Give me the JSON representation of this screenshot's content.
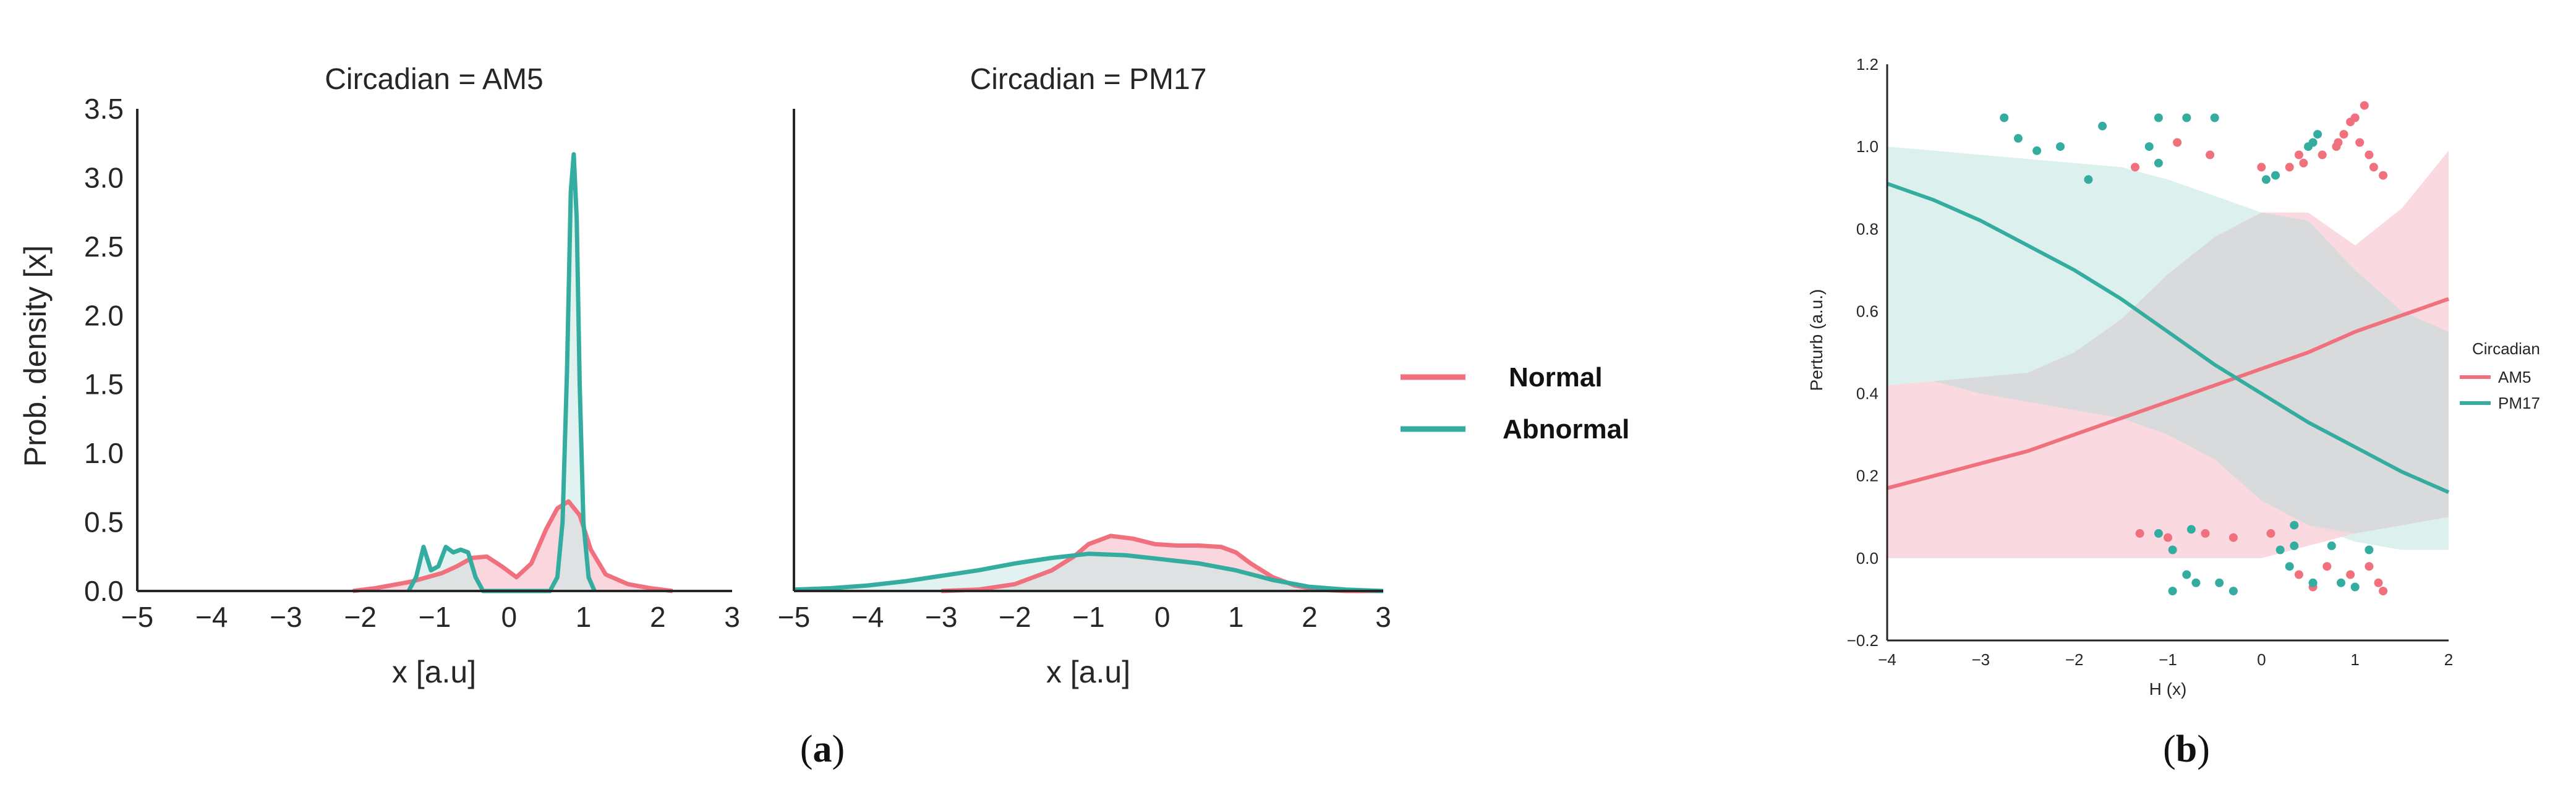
{
  "colors": {
    "normal": "#f0707e",
    "abnormal": "#34ada0",
    "band_normal": "#f9d3da",
    "band_abnormal": "#cdeae6",
    "band_overlap": "#d7dada"
  },
  "captions": {
    "a": {
      "open": "(",
      "letter": "a",
      "close": ")"
    },
    "b": {
      "open": "(",
      "letter": "b",
      "close": ")"
    }
  },
  "chart_data": [
    {
      "type": "area",
      "title": "Circadian = AM5",
      "xlabel": "x [a.u]",
      "ylabel": "Prob. density [x]",
      "xlim": [
        -5,
        3
      ],
      "ylim": [
        0,
        3.5
      ],
      "xticks": [
        "−5",
        "−4",
        "−3",
        "−2",
        "−1",
        "0",
        "1",
        "2",
        "3"
      ],
      "yticks": [
        "0.0",
        "0.5",
        "1.0",
        "1.5",
        "2.0",
        "2.5",
        "3.0",
        "3.5"
      ],
      "grid": false,
      "series": [
        {
          "name": "Normal",
          "x": [
            -2.1,
            -1.8,
            -1.5,
            -1.3,
            -1.1,
            -0.9,
            -0.7,
            -0.5,
            -0.3,
            -0.1,
            0.1,
            0.3,
            0.5,
            0.65,
            0.8,
            0.95,
            1.1,
            1.3,
            1.6,
            1.9,
            2.2
          ],
          "y": [
            0,
            0.02,
            0.05,
            0.07,
            0.1,
            0.13,
            0.18,
            0.24,
            0.25,
            0.18,
            0.1,
            0.2,
            0.45,
            0.6,
            0.65,
            0.55,
            0.3,
            0.12,
            0.05,
            0.02,
            0
          ]
        },
        {
          "name": "Abnormal",
          "x": [
            -1.35,
            -1.25,
            -1.15,
            -1.05,
            -0.95,
            -0.85,
            -0.75,
            -0.65,
            -0.55,
            -0.45,
            -0.35,
            0.55,
            0.65,
            0.72,
            0.78,
            0.83,
            0.87,
            0.91,
            0.95,
            1.0,
            1.07,
            1.15
          ],
          "y": [
            0,
            0.1,
            0.32,
            0.15,
            0.18,
            0.32,
            0.28,
            0.3,
            0.28,
            0.1,
            0,
            0,
            0.1,
            0.5,
            1.6,
            2.9,
            3.17,
            2.7,
            1.5,
            0.5,
            0.1,
            0
          ]
        }
      ]
    },
    {
      "type": "area",
      "title": "Circadian = PM17",
      "xlabel": "x [a.u]",
      "xlim": [
        -5,
        3
      ],
      "ylim": [
        0,
        3.5
      ],
      "xticks": [
        "−5",
        "−4",
        "−3",
        "−2",
        "−1",
        "0",
        "1",
        "2",
        "3"
      ],
      "grid": false,
      "series": [
        {
          "name": "Normal",
          "x": [
            -3,
            -2.5,
            -2,
            -1.5,
            -1.2,
            -1,
            -0.7,
            -0.4,
            -0.1,
            0.2,
            0.5,
            0.8,
            1.0,
            1.2,
            1.5,
            1.8,
            2.1,
            2.5,
            3
          ],
          "y": [
            0,
            0.01,
            0.05,
            0.15,
            0.25,
            0.34,
            0.4,
            0.38,
            0.34,
            0.33,
            0.33,
            0.32,
            0.28,
            0.2,
            0.1,
            0.04,
            0.01,
            0,
            0
          ]
        },
        {
          "name": "Abnormal",
          "x": [
            -5,
            -4.5,
            -4,
            -3.5,
            -3,
            -2.5,
            -2,
            -1.5,
            -1,
            -0.5,
            0,
            0.5,
            1,
            1.5,
            2,
            2.5,
            3
          ],
          "y": [
            0.01,
            0.02,
            0.04,
            0.07,
            0.11,
            0.15,
            0.2,
            0.24,
            0.27,
            0.26,
            0.23,
            0.2,
            0.15,
            0.08,
            0.03,
            0.01,
            0
          ]
        }
      ]
    },
    {
      "type": "line",
      "xlabel": "H (x)",
      "ylabel": "Perturb (a.u.)",
      "xlim": [
        -4,
        2
      ],
      "ylim": [
        -0.2,
        1.2
      ],
      "xticks": [
        "−4",
        "−3",
        "−2",
        "−1",
        "0",
        "1",
        "2"
      ],
      "yticks": [
        "−0.2",
        "0.0",
        "0.2",
        "0.4",
        "0.6",
        "0.8",
        "1.0",
        "1.2"
      ],
      "grid": false,
      "legend": {
        "title": "Circadian",
        "position": "right"
      },
      "series": [
        {
          "name": "AM5",
          "x": [
            -4,
            -3.5,
            -3,
            -2.5,
            -2,
            -1.5,
            -1,
            -0.5,
            0,
            0.5,
            1,
            1.5,
            2
          ],
          "y": [
            0.17,
            0.2,
            0.23,
            0.26,
            0.3,
            0.34,
            0.38,
            0.42,
            0.46,
            0.5,
            0.55,
            0.59,
            0.63
          ],
          "band_lower": [
            0,
            0,
            0,
            0,
            0,
            0,
            0,
            0,
            0,
            0.03,
            0.06,
            0.08,
            0.1
          ],
          "band_upper": [
            0.42,
            0.43,
            0.44,
            0.45,
            0.5,
            0.58,
            0.69,
            0.78,
            0.84,
            0.84,
            0.76,
            0.85,
            0.99
          ],
          "points": [
            [
              -1.35,
              0.95
            ],
            [
              -0.9,
              1.01
            ],
            [
              -0.55,
              0.98
            ],
            [
              0,
              0.95
            ],
            [
              0.3,
              0.95
            ],
            [
              0.4,
              0.98
            ],
            [
              0.45,
              0.96
            ],
            [
              0.65,
              0.98
            ],
            [
              0.8,
              1.0
            ],
            [
              0.82,
              1.01
            ],
            [
              0.88,
              1.03
            ],
            [
              0.95,
              1.06
            ],
            [
              1.0,
              1.07
            ],
            [
              1.1,
              1.1
            ],
            [
              1.05,
              1.01
            ],
            [
              1.15,
              0.98
            ],
            [
              1.2,
              0.95
            ],
            [
              1.3,
              0.93
            ],
            [
              -1.3,
              0.06
            ],
            [
              -1.0,
              0.05
            ],
            [
              -0.6,
              0.06
            ],
            [
              -0.3,
              0.05
            ],
            [
              0.1,
              0.06
            ],
            [
              0.4,
              -0.04
            ],
            [
              0.55,
              -0.07
            ],
            [
              0.7,
              -0.02
            ],
            [
              0.95,
              -0.04
            ],
            [
              1.15,
              -0.02
            ],
            [
              1.25,
              -0.06
            ],
            [
              1.3,
              -0.08
            ]
          ]
        },
        {
          "name": "PM17",
          "x": [
            -4,
            -3.5,
            -3,
            -2.5,
            -2,
            -1.5,
            -1,
            -0.5,
            0,
            0.5,
            1,
            1.5,
            2
          ],
          "y": [
            0.91,
            0.87,
            0.82,
            0.76,
            0.7,
            0.63,
            0.55,
            0.47,
            0.4,
            0.33,
            0.27,
            0.21,
            0.16
          ],
          "band_lower": [
            0.42,
            0.43,
            0.4,
            0.38,
            0.36,
            0.34,
            0.3,
            0.24,
            0.14,
            0.08,
            0.04,
            0.02,
            0.02
          ],
          "band_upper": [
            1,
            0.99,
            0.98,
            0.97,
            0.96,
            0.95,
            0.92,
            0.88,
            0.84,
            0.82,
            0.7,
            0.6,
            0.55
          ],
          "points": [
            [
              -2.75,
              1.07
            ],
            [
              -2.6,
              1.02
            ],
            [
              -2.4,
              0.99
            ],
            [
              -2.15,
              1.0
            ],
            [
              -1.85,
              0.92
            ],
            [
              -1.7,
              1.05
            ],
            [
              -1.1,
              1.07
            ],
            [
              -0.8,
              1.07
            ],
            [
              -1.1,
              0.96
            ],
            [
              -0.5,
              1.07
            ],
            [
              -1.2,
              1.0
            ],
            [
              0.05,
              0.92
            ],
            [
              0.15,
              0.93
            ],
            [
              0.5,
              1.0
            ],
            [
              0.55,
              1.01
            ],
            [
              0.6,
              1.03
            ],
            [
              -0.75,
              0.07
            ],
            [
              -0.95,
              0.02
            ],
            [
              -1.1,
              0.06
            ],
            [
              -0.8,
              -0.04
            ],
            [
              -0.95,
              -0.08
            ],
            [
              -0.7,
              -0.06
            ],
            [
              -0.45,
              -0.06
            ],
            [
              -0.3,
              -0.08
            ],
            [
              0.2,
              0.02
            ],
            [
              0.3,
              -0.02
            ],
            [
              0.35,
              0.03
            ],
            [
              0.55,
              -0.06
            ],
            [
              0.75,
              0.03
            ],
            [
              0.85,
              -0.06
            ],
            [
              1.0,
              -0.07
            ],
            [
              1.15,
              0.02
            ],
            [
              0.35,
              0.08
            ]
          ]
        }
      ]
    }
  ]
}
